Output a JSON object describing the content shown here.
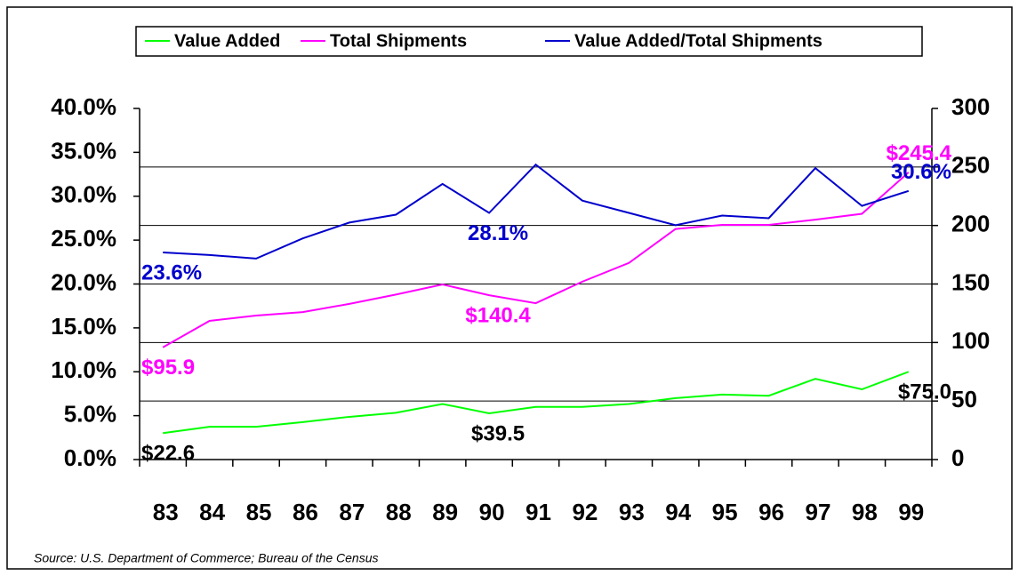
{
  "chart_data": {
    "type": "line",
    "categories": [
      "83",
      "84",
      "85",
      "86",
      "87",
      "88",
      "89",
      "90",
      "91",
      "92",
      "93",
      "94",
      "95",
      "96",
      "97",
      "98",
      "99"
    ],
    "ylim": [
      0,
      40
    ],
    "yticks": [
      {
        "value": 0,
        "label": "0.0%"
      },
      {
        "value": 5,
        "label": "5.0%"
      },
      {
        "value": 10,
        "label": "10.0%"
      },
      {
        "value": 15,
        "label": "15.0%"
      },
      {
        "value": 20,
        "label": "20.0%"
      },
      {
        "value": 25,
        "label": "25.0%"
      },
      {
        "value": 30,
        "label": "30.0%"
      },
      {
        "value": 35,
        "label": "35.0%"
      },
      {
        "value": 40,
        "label": "40.0%"
      }
    ],
    "y2lim": [
      0,
      300
    ],
    "y2ticks": [
      0,
      50,
      100,
      150,
      200,
      250,
      300
    ],
    "grid": true,
    "series": [
      {
        "name": "Value Added",
        "color": "#00ff00",
        "axis": "y2",
        "label_color": "#000000",
        "values": [
          22.6,
          28,
          28,
          32,
          36.5,
          40,
          47.5,
          39.5,
          45,
          45,
          47.5,
          52.5,
          55.5,
          54.5,
          69,
          60,
          75.0
        ],
        "value_labels": [
          "$22.6",
          null,
          null,
          null,
          null,
          null,
          null,
          "$39.5",
          null,
          null,
          null,
          null,
          null,
          null,
          null,
          null,
          "$75.0"
        ]
      },
      {
        "name": "Total Shipments",
        "color": "#ff00ff",
        "axis": "y2",
        "label_color": "#ff00ff",
        "values": [
          95.9,
          118.5,
          123,
          126,
          133,
          141,
          149.6,
          140.4,
          133.6,
          152,
          168,
          197,
          200.5,
          200.5,
          205,
          210,
          245.4
        ],
        "value_labels": [
          "$95.9",
          null,
          null,
          null,
          null,
          null,
          null,
          "$140.4",
          null,
          null,
          null,
          null,
          null,
          null,
          null,
          null,
          "$245.4"
        ]
      },
      {
        "name": "Value Added/Total Shipments",
        "color": "#0000cc",
        "label_color": "#0000cc",
        "values": [
          23.6,
          23.3,
          22.9,
          25.2,
          27.0,
          27.9,
          31.4,
          28.1,
          33.6,
          29.5,
          28.1,
          26.7,
          27.8,
          27.5,
          33.2,
          28.9,
          30.6
        ],
        "value_labels": [
          "23.6%",
          null,
          null,
          null,
          null,
          null,
          null,
          "28.1%",
          null,
          null,
          null,
          null,
          null,
          null,
          null,
          null,
          "30.6%"
        ]
      }
    ],
    "source": "Source:  U.S. Department of Commerce; Bureau of the Census"
  }
}
